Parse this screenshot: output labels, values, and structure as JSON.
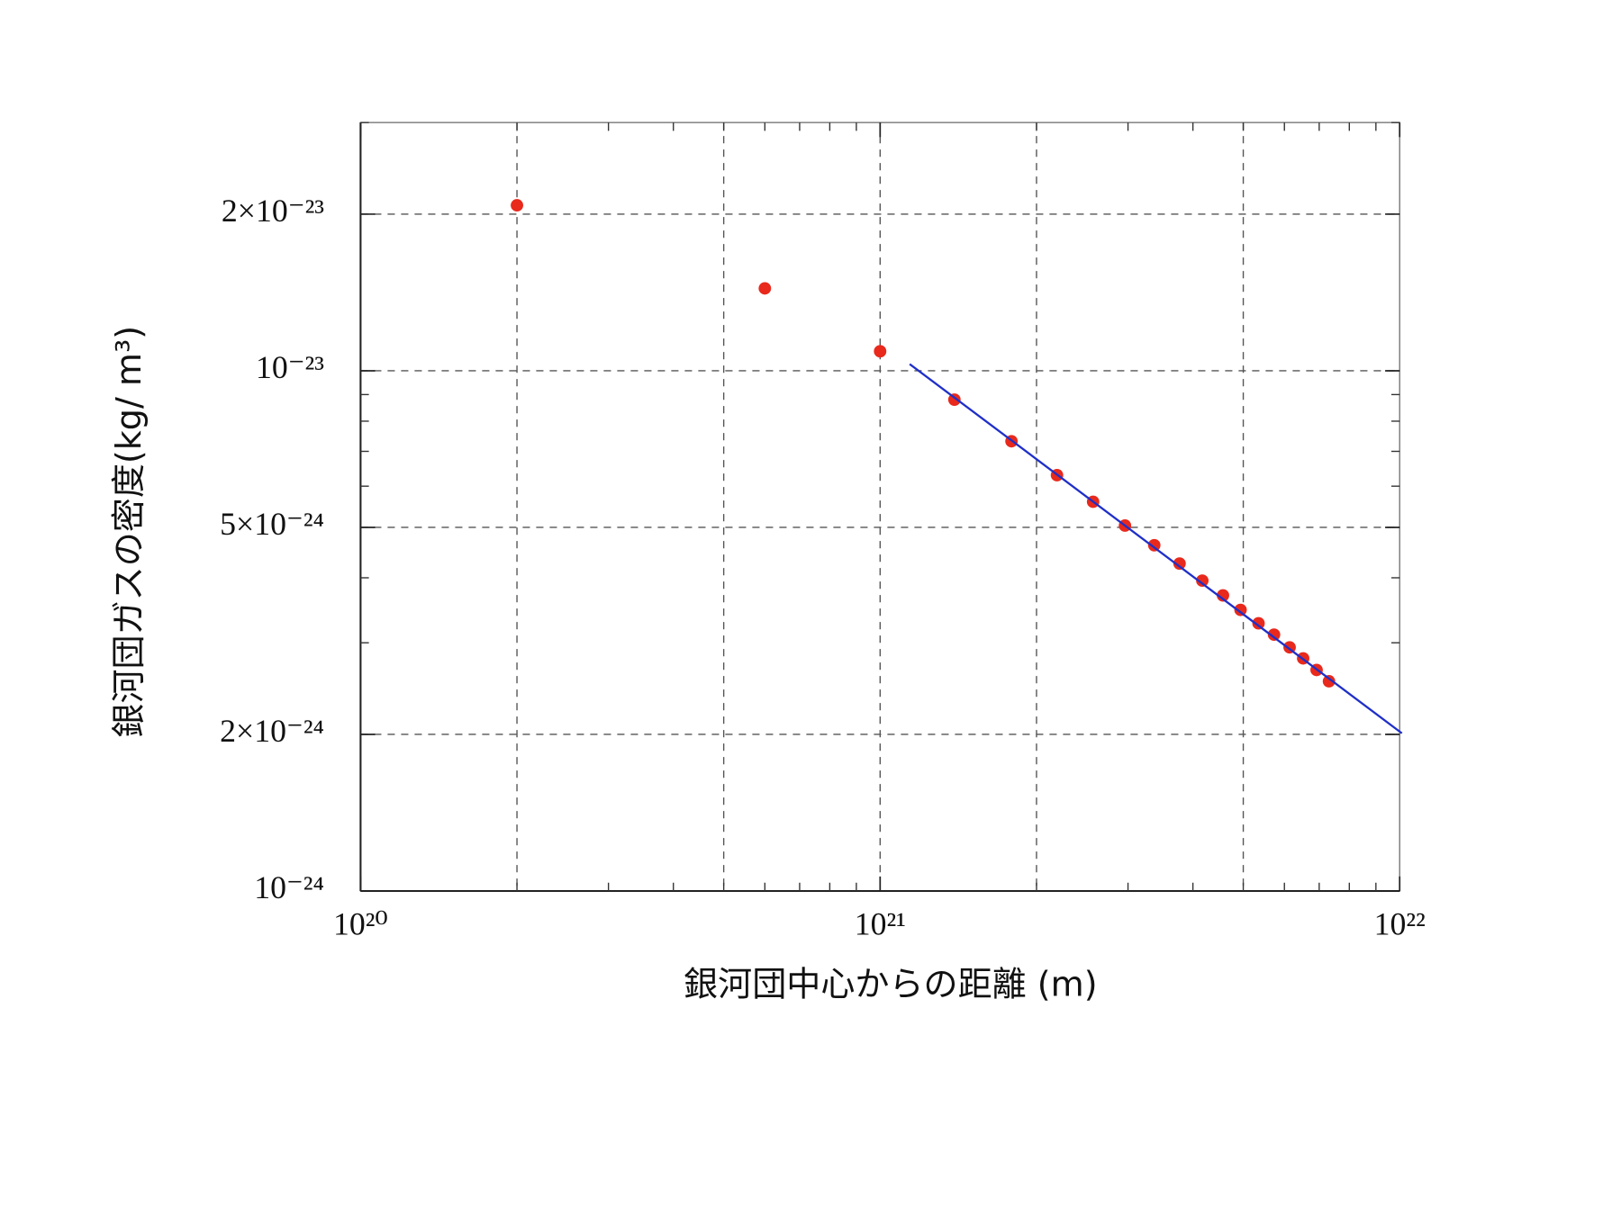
{
  "chart_data": {
    "type": "scatter",
    "x_label": "銀河団中心からの距離 (m)",
    "y_label": "銀河団ガスの密度(kg/ m³)",
    "xscale": "log",
    "yscale": "log",
    "xlim": [
      1e+20,
      1e+22
    ],
    "ylim": [
      1e-24,
      3e-23
    ],
    "xticks": [
      {
        "value": 1e+20,
        "label": "10²⁰"
      },
      {
        "value": 1e+21,
        "label": "10²¹"
      },
      {
        "value": 1e+22,
        "label": "10²²"
      }
    ],
    "yticks": [
      {
        "value": 1e-24,
        "label": "10⁻²⁴"
      },
      {
        "value": 2e-24,
        "label": "2×10⁻²⁴"
      },
      {
        "value": 5e-24,
        "label": "5×10⁻²⁴"
      },
      {
        "value": 1e-23,
        "label": "10⁻²³"
      },
      {
        "value": 2e-23,
        "label": "2×10⁻²³"
      }
    ],
    "xgrid": [
      2e+20,
      5e+20,
      1e+21,
      2e+21,
      5e+21
    ],
    "ygrid": [
      2e-24,
      5e-24,
      1e-23,
      2e-23
    ],
    "xminorticks": [
      2e+20,
      3e+20,
      4e+20,
      5e+20,
      6e+20,
      7e+20,
      8e+20,
      9e+20,
      2e+21,
      3e+21,
      4e+21,
      5e+21,
      6e+21,
      7e+21,
      8e+21,
      9e+21
    ],
    "yminorticks": [
      3e-24,
      4e-24,
      6e-24,
      7e-24,
      8e-24,
      9e-24,
      3e-23
    ],
    "grid": true,
    "series": [
      {
        "type": "scatter",
        "color": "#e8291c",
        "x": [
          2e+20,
          6e+20,
          1e+21,
          1.39e+21,
          1.79e+21,
          2.19e+21,
          2.57e+21,
          2.96e+21,
          3.37e+21,
          3.77e+21,
          4.17e+21,
          4.57e+21,
          4.94e+21,
          5.35e+21,
          5.73e+21,
          6.14e+21,
          6.52e+21,
          6.92e+21,
          7.31e+21
        ],
        "values": [
          2.08e-23,
          1.44e-23,
          1.09e-23,
          8.8e-24,
          7.32e-24,
          6.3e-24,
          5.6e-24,
          5.04e-24,
          4.62e-24,
          4.26e-24,
          3.95e-24,
          3.7e-24,
          3.47e-24,
          3.27e-24,
          3.11e-24,
          2.94e-24,
          2.8e-24,
          2.66e-24,
          2.53e-24
        ]
      },
      {
        "type": "line",
        "color": "#1f2fc8",
        "x": [
          1.14e+21,
          1.01e+22
        ],
        "values": [
          1.03e-23,
          2.01e-24
        ]
      }
    ]
  }
}
